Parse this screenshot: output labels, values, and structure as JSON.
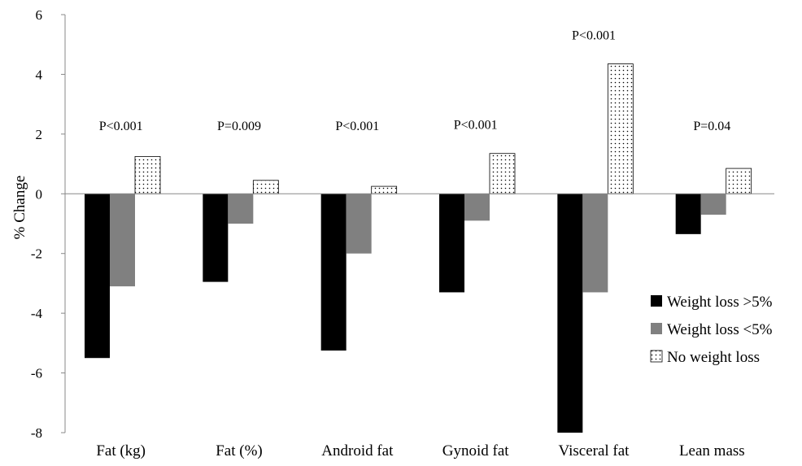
{
  "chart_data": {
    "type": "bar",
    "title": "",
    "xlabel": "",
    "ylabel": "% Change",
    "ylim": [
      -8,
      6
    ],
    "yticks": [
      -8,
      -6,
      -4,
      -2,
      0,
      2,
      4,
      6
    ],
    "ytick_labels": [
      "-8",
      "-6",
      "-4",
      "-2",
      "0",
      "2",
      "4",
      "6"
    ],
    "grid": false,
    "legend_position": "right",
    "categories": [
      "Fat (kg)",
      "Fat (%)",
      "Android fat",
      "Gynoid fat",
      "Visceral fat",
      "Lean mass"
    ],
    "p_values": [
      "P<0.001",
      "P=0.009",
      "P<0.001",
      "P<0.001",
      "P<0.001",
      "P=0.04"
    ],
    "series": [
      {
        "name": "Weight loss >5%",
        "fill": "#000000",
        "pattern": "solid",
        "values": [
          -5.5,
          -2.95,
          -5.25,
          -3.3,
          -8.0,
          -1.35
        ]
      },
      {
        "name": "Weight loss <5%",
        "fill": "#808080",
        "pattern": "solid",
        "values": [
          -3.1,
          -1.0,
          -2.0,
          -0.9,
          -3.3,
          -0.7
        ]
      },
      {
        "name": "No weight loss",
        "fill": "#ffffff",
        "pattern": "dotted",
        "values": [
          1.25,
          0.45,
          0.25,
          1.35,
          4.35,
          0.85
        ]
      }
    ]
  }
}
